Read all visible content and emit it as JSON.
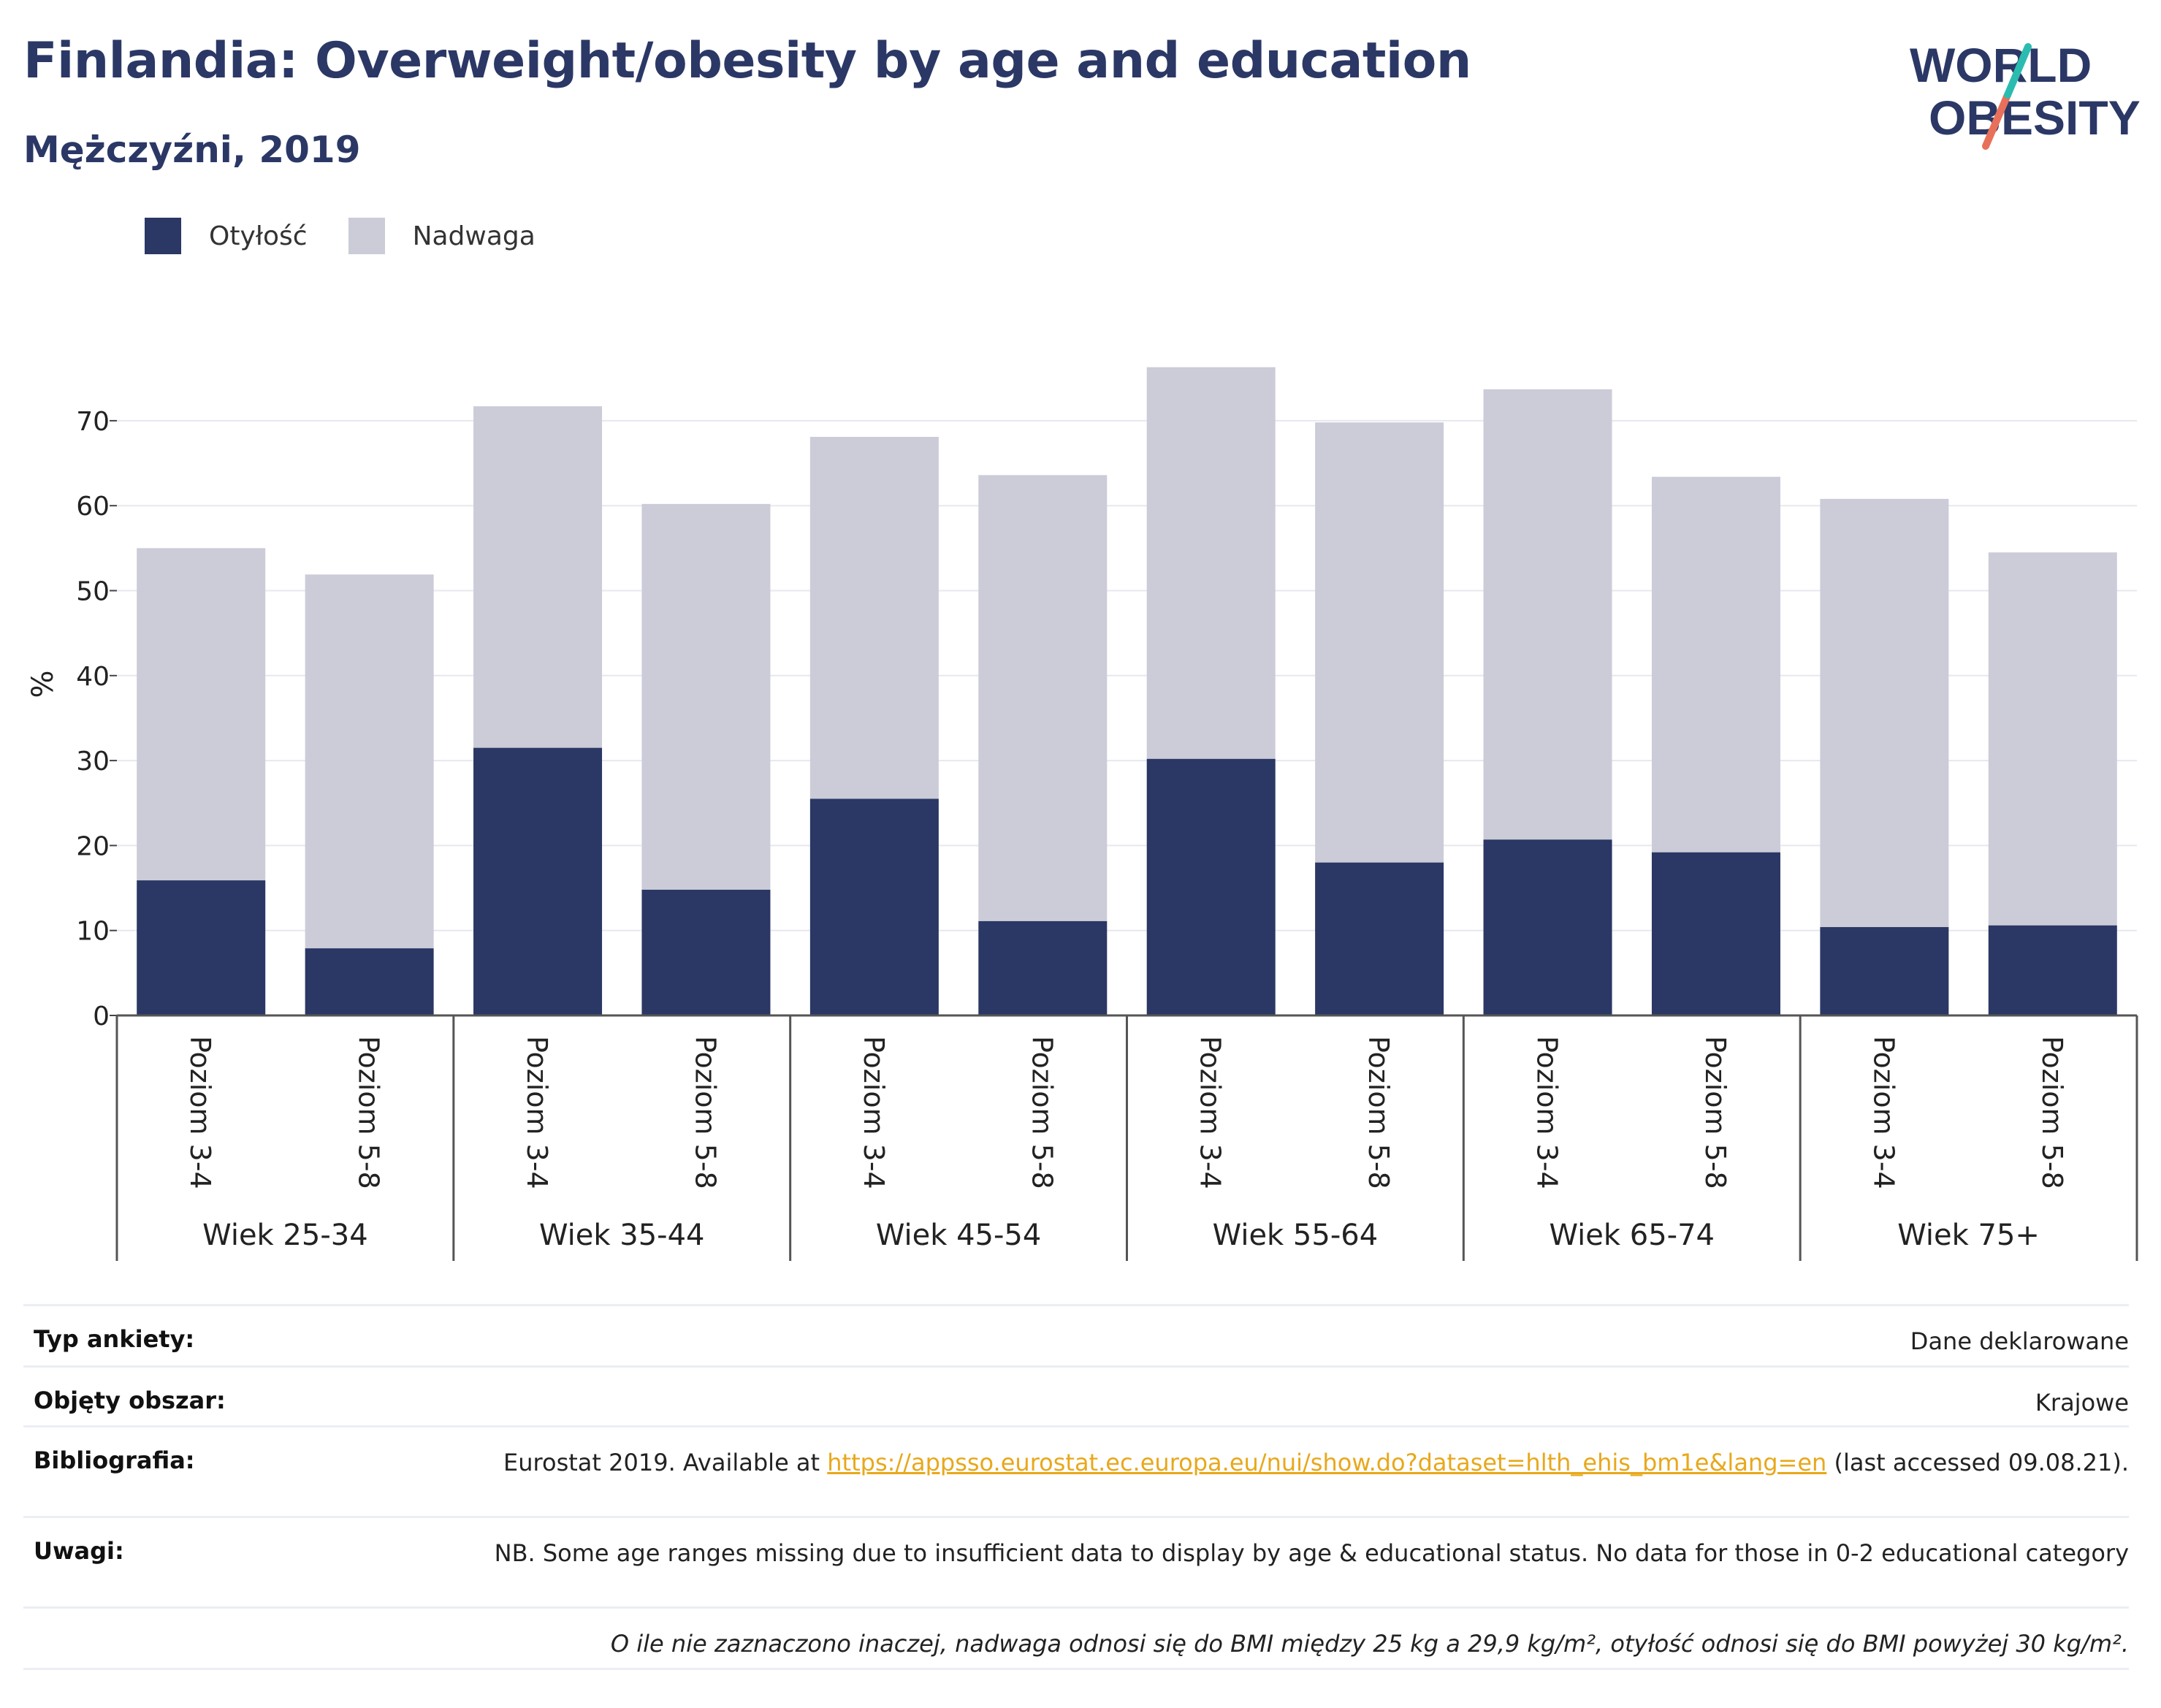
{
  "header": {
    "title": "Finlandia: Overweight/obesity by age and education",
    "subtitle": "Mężczyźni, 2019"
  },
  "logo": {
    "line1": "WORLD",
    "line2": "OBESITY"
  },
  "colors": {
    "obesity": "#2b3764",
    "overweight": "#cbccd8",
    "accent_teal": "#2bbcb0",
    "accent_coral": "#e8705a",
    "brand": "#2b3866"
  },
  "chart_data": {
    "type": "bar",
    "stacked": true,
    "ylabel": "%",
    "ylim": [
      0,
      78
    ],
    "yticks": [
      0,
      10,
      20,
      30,
      40,
      50,
      60,
      70
    ],
    "grid": true,
    "legend_position": "top-left",
    "groups": [
      "Wiek 25-34",
      "Wiek 35-44",
      "Wiek 45-54",
      "Wiek 55-64",
      "Wiek 65-74",
      "Wiek 75+"
    ],
    "subcategories": [
      "Poziom 3-4",
      "Poziom 5-8"
    ],
    "series": [
      {
        "name": "Otyłość",
        "values": [
          15.9,
          7.9,
          31.5,
          14.8,
          25.5,
          11.1,
          30.2,
          18.0,
          20.7,
          19.2,
          10.4,
          10.6
        ]
      },
      {
        "name": "Nadwaga",
        "values": [
          39.1,
          44.0,
          40.2,
          45.4,
          42.6,
          52.5,
          46.1,
          51.8,
          53.0,
          44.2,
          50.4,
          43.9
        ]
      }
    ]
  },
  "meta": {
    "rows": [
      {
        "key": "Typ ankiety:",
        "value": "Dane deklarowane"
      },
      {
        "key": "Objęty obszar:",
        "value": "Krajowe"
      },
      {
        "key": "Bibliografia:",
        "value_before": "Eurostat 2019. Available at ",
        "link": "https://appsso.eurostat.ec.europa.eu/nui/show.do?dataset=hlth_ehis_bm1e&lang=en",
        "value_after": " (last accessed 09.08.21)."
      },
      {
        "key": "Uwagi:",
        "value": "NB. Some age ranges missing due to insufficient data to display by age & educational status. No data for those in 0-2 educational category"
      }
    ],
    "footnote": "O ile nie zaznaczono inaczej, nadwaga odnosi się do BMI między 25 kg a 29,9 kg/m², otyłość odnosi się do BMI powyżej 30 kg/m²."
  }
}
